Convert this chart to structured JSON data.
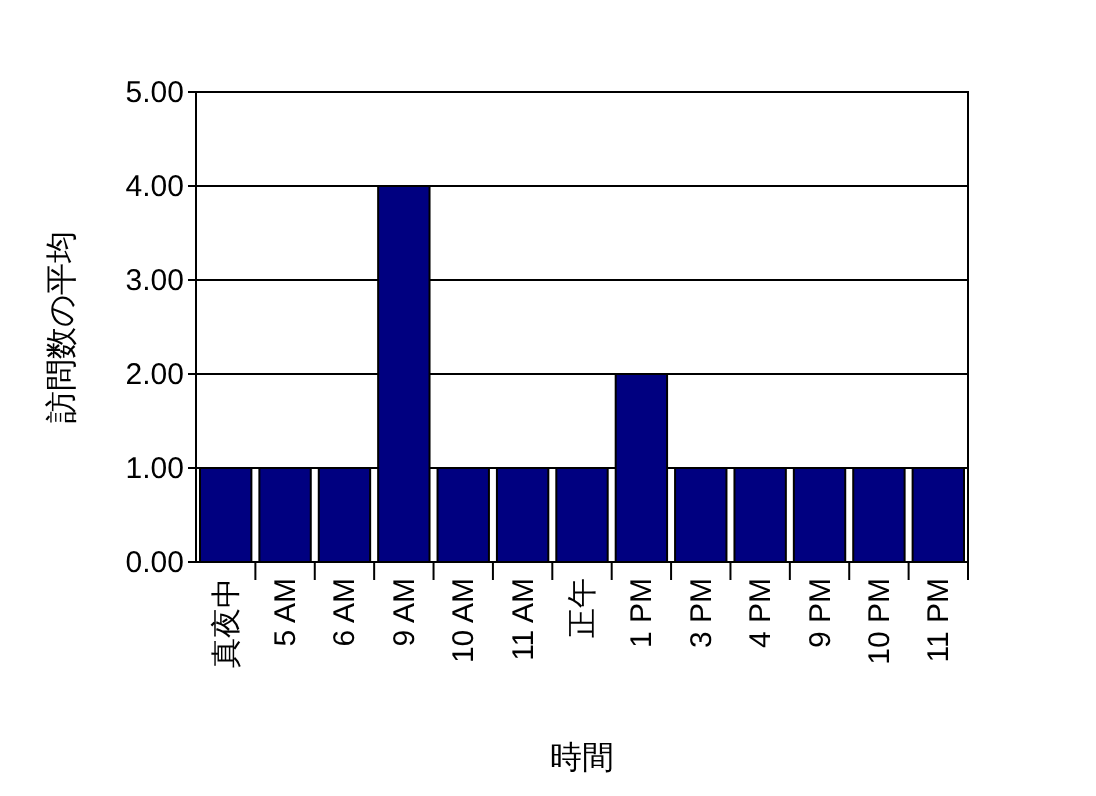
{
  "chart_data": {
    "type": "bar",
    "xlabel": "時間",
    "ylabel": "訪問数の平均",
    "categories": [
      "真夜中",
      "5 AM",
      "6 AM",
      "9 AM",
      "10 AM",
      "11 AM",
      "正午",
      "1 PM",
      "3 PM",
      "4 PM",
      "9 PM",
      "10 PM",
      "11 PM"
    ],
    "values": [
      1,
      1,
      1,
      4,
      1,
      1,
      1,
      2,
      1,
      1,
      1,
      1,
      1
    ],
    "color": "#000080",
    "ylim": [
      0,
      5
    ],
    "yticks": [
      {
        "value": 0,
        "label": "0.00"
      },
      {
        "value": 1,
        "label": "1.00"
      },
      {
        "value": 2,
        "label": "2.00"
      },
      {
        "value": 3,
        "label": "3.00"
      },
      {
        "value": 4,
        "label": "4.00"
      },
      {
        "value": 5,
        "label": "5.00"
      }
    ],
    "grid": "y"
  }
}
